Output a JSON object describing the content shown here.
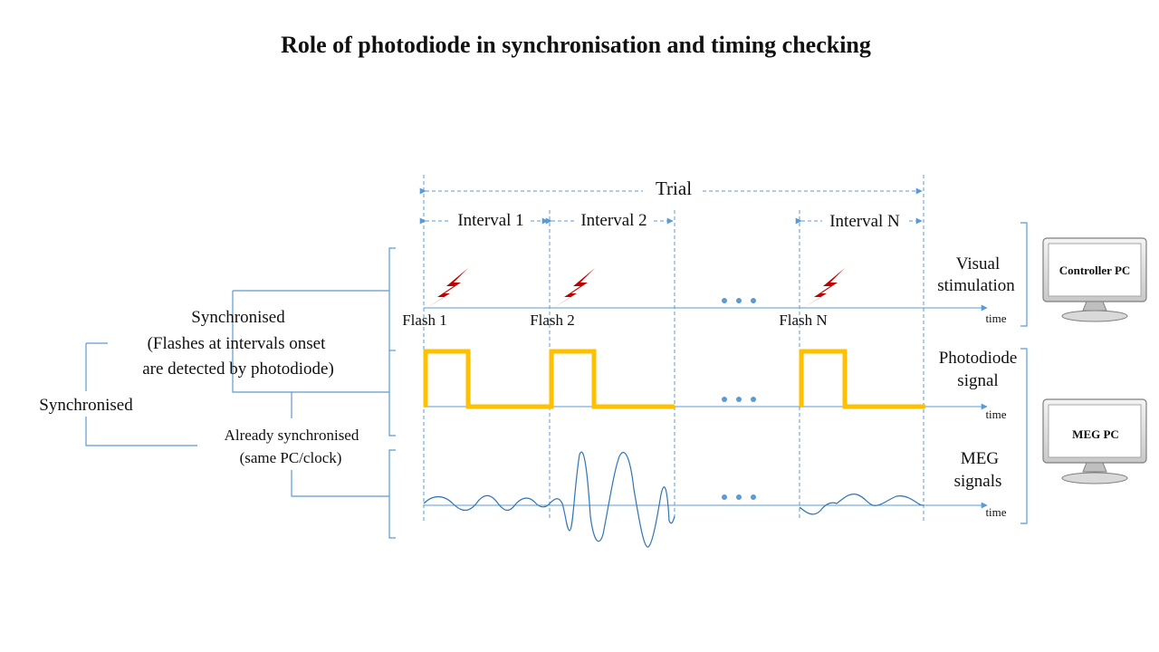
{
  "title": "Role of photodiode in synchronisation and timing checking",
  "trial_label": "Trial",
  "intervals": [
    "Interval 1",
    "Interval 2",
    "Interval N"
  ],
  "flashes": [
    "Flash 1",
    "Flash 2",
    "Flash N"
  ],
  "rows": {
    "visual": [
      "Visual",
      "stimulation"
    ],
    "photodiode": [
      "Photodiode",
      "signal"
    ],
    "meg": [
      "MEG",
      "signals"
    ]
  },
  "time_label": "time",
  "computers": {
    "controller": "Controller PC",
    "meg": "MEG PC"
  },
  "left_labels": {
    "sync_main": "Synchronised",
    "sync_sub1": "Synchronised",
    "sync_sub2": "(Flashes at intervals onset",
    "sync_sub3": "are detected by photodiode)",
    "already1": "Already synchronised",
    "already2": "(same PC/clock)"
  },
  "colors": {
    "guide": "#5b9bd5",
    "pulse": "#ffc000",
    "flash": "#c00000",
    "meg_wave": "#2e75b6"
  }
}
